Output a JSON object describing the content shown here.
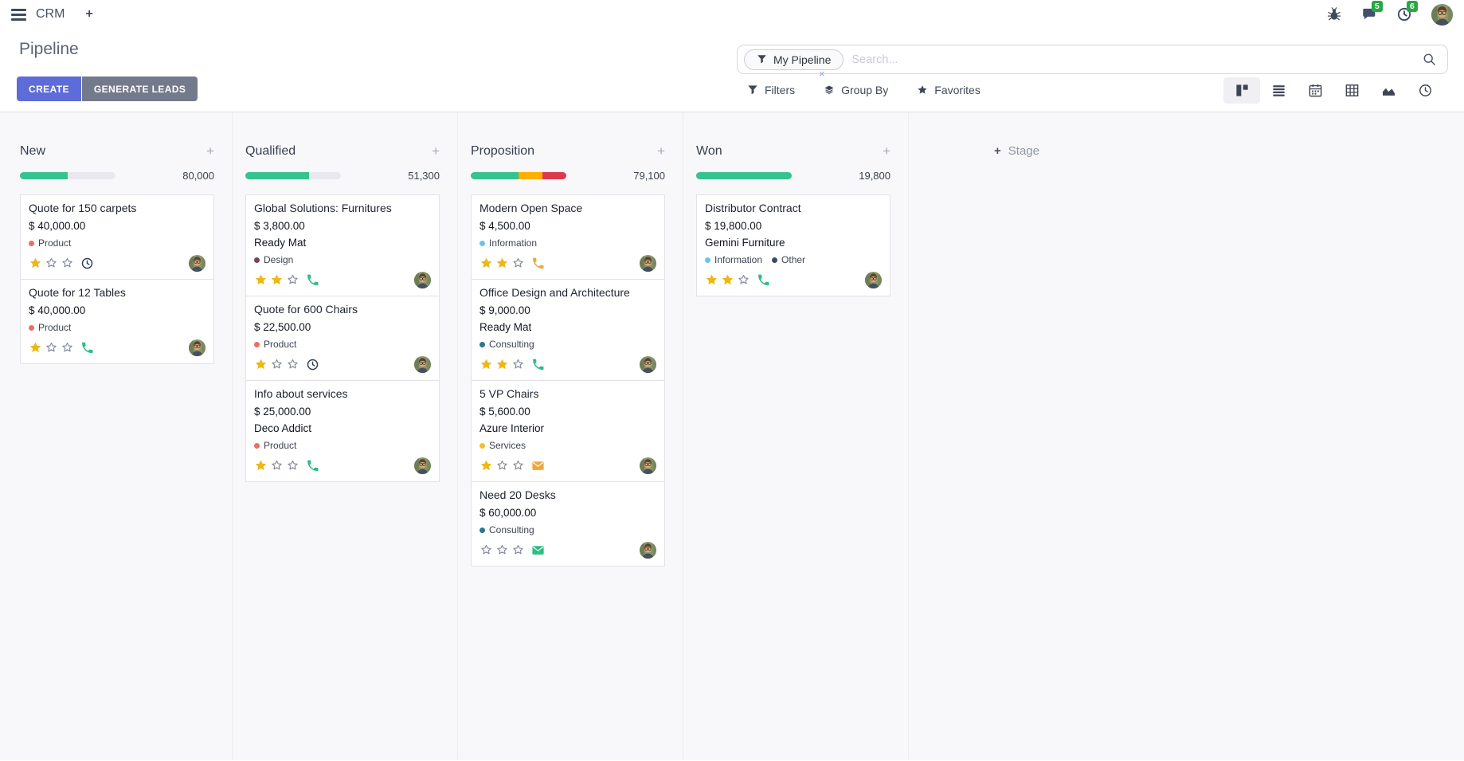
{
  "navbar": {
    "app_name": "CRM",
    "chat_badge": "5",
    "activity_badge": "6"
  },
  "icons": {
    "plus": "+",
    "facet_close": "×"
  },
  "page": {
    "title": "Pipeline"
  },
  "actions": {
    "create": "CREATE",
    "generate_leads": "GENERATE LEADS"
  },
  "search": {
    "facet": "My Pipeline",
    "placeholder": "Search...",
    "filters": "Filters",
    "group_by": "Group By",
    "favorites": "Favorites"
  },
  "view_switcher": {
    "active": "kanban",
    "views": [
      "kanban",
      "list",
      "calendar",
      "pivot",
      "graph",
      "activity"
    ]
  },
  "colors": {
    "create_button": "#5D6CD9",
    "generate_button": "#737A8B",
    "badge_green": "#28A745",
    "progress_green": "#35C38F",
    "progress_orange": "#FFAF00",
    "progress_red": "#DC3A4C",
    "star_gold": "#EFB712"
  },
  "board": {
    "add_stage_label": "Stage",
    "stars_max": 3,
    "columns": [
      {
        "name": "New",
        "total": "80,000",
        "progress": [
          {
            "color": "#35C38F",
            "pct": 50
          }
        ],
        "cards": [
          {
            "title": "Quote for 150 carpets",
            "amount": "$ 40,000.00",
            "partner": null,
            "tags": [
              {
                "label": "Product",
                "color": "#ED6D5E"
              }
            ],
            "stars": 1,
            "activity": {
              "type": "clock",
              "color": "#2C3A4D"
            }
          },
          {
            "title": "Quote for 12 Tables",
            "amount": "$ 40,000.00",
            "partner": null,
            "tags": [
              {
                "label": "Product",
                "color": "#ED6D5E"
              }
            ],
            "stars": 1,
            "activity": {
              "type": "phone",
              "color": "#2DBD85"
            }
          }
        ]
      },
      {
        "name": "Qualified",
        "total": "51,300",
        "progress": [
          {
            "color": "#35C38F",
            "pct": 67
          }
        ],
        "cards": [
          {
            "title": "Global Solutions: Furnitures",
            "amount": "$ 3,800.00",
            "partner": "Ready Mat",
            "tags": [
              {
                "label": "Design",
                "color": "#7B4160"
              }
            ],
            "stars": 2,
            "activity": {
              "type": "phone",
              "color": "#2DBD85"
            }
          },
          {
            "title": "Quote for 600 Chairs",
            "amount": "$ 22,500.00",
            "partner": null,
            "tags": [
              {
                "label": "Product",
                "color": "#ED6D5E"
              }
            ],
            "stars": 1,
            "activity": {
              "type": "clock",
              "color": "#2C3A4D"
            }
          },
          {
            "title": "Info about services",
            "amount": "$ 25,000.00",
            "partner": "Deco Addict",
            "tags": [
              {
                "label": "Product",
                "color": "#ED6D5E"
              }
            ],
            "stars": 1,
            "activity": {
              "type": "phone",
              "color": "#2DBD85"
            }
          }
        ]
      },
      {
        "name": "Proposition",
        "total": "79,100",
        "progress": [
          {
            "color": "#35C38F",
            "pct": 50
          },
          {
            "color": "#FFAF00",
            "pct": 25
          },
          {
            "color": "#DC3A4C",
            "pct": 25
          }
        ],
        "cards": [
          {
            "title": "Modern Open Space",
            "amount": "$ 4,500.00",
            "partner": null,
            "tags": [
              {
                "label": "Information",
                "color": "#6DC4EA"
              }
            ],
            "stars": 2,
            "activity": {
              "type": "phone",
              "color": "#EDA73F"
            }
          },
          {
            "title": "Office Design and Architecture",
            "amount": "$ 9,000.00",
            "partner": "Ready Mat",
            "tags": [
              {
                "label": "Consulting",
                "color": "#27798B"
              }
            ],
            "stars": 2,
            "activity": {
              "type": "phone",
              "color": "#2DBD85"
            }
          },
          {
            "title": "5 VP Chairs",
            "amount": "$ 5,600.00",
            "partner": "Azure Interior",
            "tags": [
              {
                "label": "Services",
                "color": "#EEC12F"
              }
            ],
            "stars": 1,
            "activity": {
              "type": "envelope",
              "color": "#EDA73F"
            }
          },
          {
            "title": "Need 20 Desks",
            "amount": "$ 60,000.00",
            "partner": null,
            "tags": [
              {
                "label": "Consulting",
                "color": "#27798B"
              }
            ],
            "stars": 0,
            "activity": {
              "type": "envelope",
              "color": "#2DBD85"
            }
          }
        ]
      },
      {
        "name": "Won",
        "total": "19,800",
        "progress": [
          {
            "color": "#35C38F",
            "pct": 100
          }
        ],
        "cards": [
          {
            "title": "Distributor Contract",
            "amount": "$ 19,800.00",
            "partner": "Gemini Furniture",
            "tags": [
              {
                "label": "Information",
                "color": "#6DC4EA"
              },
              {
                "label": "Other",
                "color": "#3B4A66"
              }
            ],
            "stars": 2,
            "activity": {
              "type": "phone",
              "color": "#2DBD85"
            }
          }
        ]
      }
    ]
  }
}
